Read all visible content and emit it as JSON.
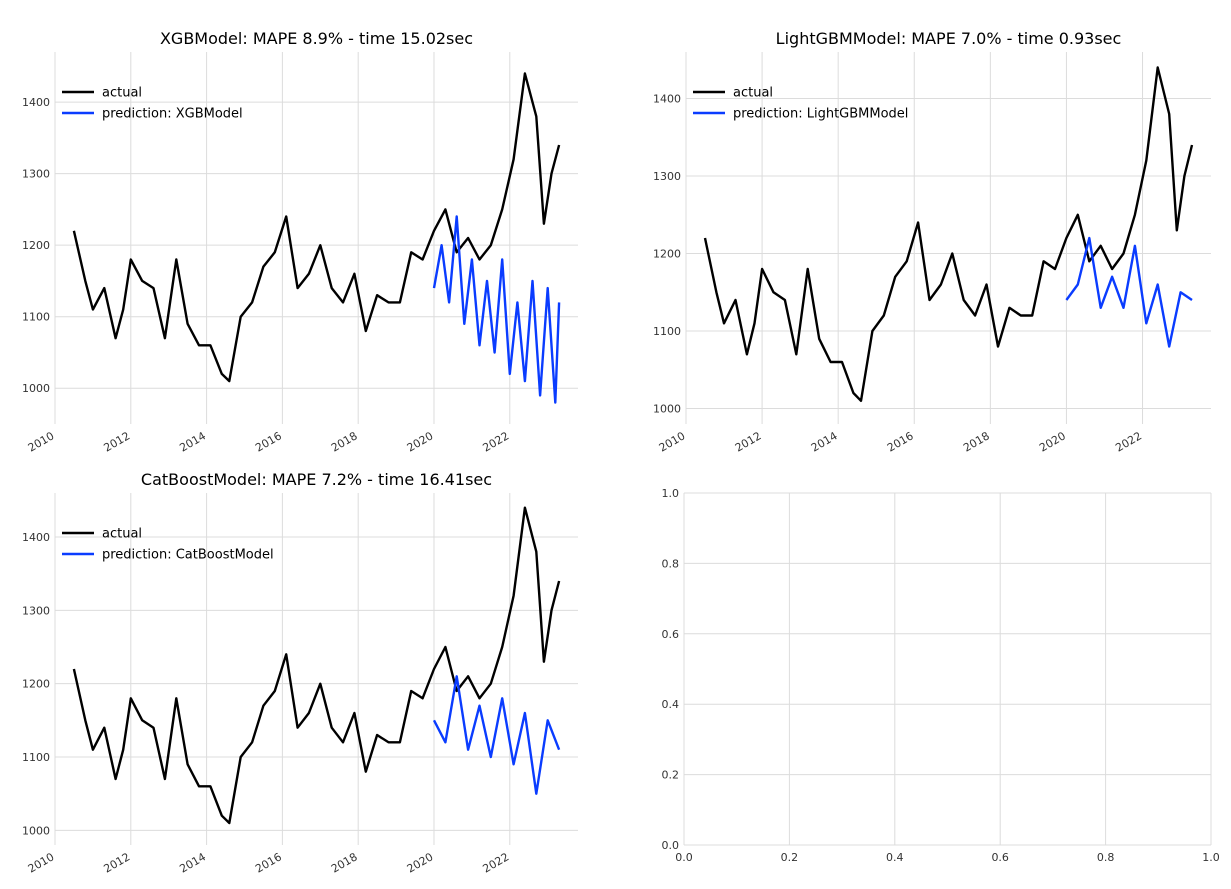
{
  "colors": {
    "actual": "#000000",
    "prediction": "#0a3cff",
    "grid": "#dcdcdc"
  },
  "chart_data": [
    {
      "type": "line",
      "title": "XGBModel: MAPE 8.9% - time 15.02sec",
      "x_ticks": [
        "2010",
        "2012",
        "2014",
        "2016",
        "2018",
        "2020",
        "2022"
      ],
      "y_ticks": [
        1000,
        1100,
        1200,
        1300,
        1400
      ],
      "xlim": [
        2010.0,
        2023.8
      ],
      "ylim": [
        950,
        1470
      ],
      "legend": "top-left",
      "grid": true,
      "series": [
        {
          "name": "actual",
          "x": [
            2010.5,
            2010.8,
            2011.0,
            2011.3,
            2011.6,
            2011.8,
            2012.0,
            2012.3,
            2012.6,
            2012.9,
            2013.2,
            2013.5,
            2013.8,
            2014.1,
            2014.4,
            2014.6,
            2014.9,
            2015.2,
            2015.5,
            2015.8,
            2016.1,
            2016.4,
            2016.7,
            2017.0,
            2017.3,
            2017.6,
            2017.9,
            2018.2,
            2018.5,
            2018.8,
            2019.1,
            2019.4,
            2019.7,
            2020.0,
            2020.3,
            2020.6,
            2020.9,
            2021.2,
            2021.5,
            2021.8,
            2022.1,
            2022.4,
            2022.7,
            2022.9,
            2023.1,
            2023.3
          ],
          "y": [
            1220,
            1150,
            1110,
            1140,
            1070,
            1110,
            1180,
            1150,
            1140,
            1070,
            1180,
            1090,
            1060,
            1060,
            1020,
            1010,
            1100,
            1120,
            1170,
            1190,
            1240,
            1140,
            1160,
            1200,
            1140,
            1120,
            1160,
            1080,
            1130,
            1120,
            1120,
            1190,
            1180,
            1220,
            1250,
            1190,
            1210,
            1180,
            1200,
            1250,
            1320,
            1440,
            1380,
            1230,
            1300,
            1340
          ]
        },
        {
          "name": "prediction: XGBModel",
          "x": [
            2020.0,
            2020.2,
            2020.4,
            2020.6,
            2020.8,
            2021.0,
            2021.2,
            2021.4,
            2021.6,
            2021.8,
            2022.0,
            2022.2,
            2022.4,
            2022.6,
            2022.8,
            2023.0,
            2023.2,
            2023.3
          ],
          "y": [
            1140,
            1200,
            1120,
            1240,
            1090,
            1180,
            1060,
            1150,
            1050,
            1180,
            1020,
            1120,
            1010,
            1150,
            990,
            1140,
            980,
            1120
          ]
        }
      ]
    },
    {
      "type": "line",
      "title": "LightGBMModel: MAPE 7.0% - time 0.93sec",
      "x_ticks": [
        "2010",
        "2012",
        "2014",
        "2016",
        "2018",
        "2020",
        "2022"
      ],
      "y_ticks": [
        1000,
        1100,
        1200,
        1300,
        1400
      ],
      "xlim": [
        2010.0,
        2023.8
      ],
      "ylim": [
        980,
        1460
      ],
      "legend": "top-left",
      "grid": true,
      "series": [
        {
          "name": "actual",
          "x": [
            2010.5,
            2010.8,
            2011.0,
            2011.3,
            2011.6,
            2011.8,
            2012.0,
            2012.3,
            2012.6,
            2012.9,
            2013.2,
            2013.5,
            2013.8,
            2014.1,
            2014.4,
            2014.6,
            2014.9,
            2015.2,
            2015.5,
            2015.8,
            2016.1,
            2016.4,
            2016.7,
            2017.0,
            2017.3,
            2017.6,
            2017.9,
            2018.2,
            2018.5,
            2018.8,
            2019.1,
            2019.4,
            2019.7,
            2020.0,
            2020.3,
            2020.6,
            2020.9,
            2021.2,
            2021.5,
            2021.8,
            2022.1,
            2022.4,
            2022.7,
            2022.9,
            2023.1,
            2023.3
          ],
          "y": [
            1220,
            1150,
            1110,
            1140,
            1070,
            1110,
            1180,
            1150,
            1140,
            1070,
            1180,
            1090,
            1060,
            1060,
            1020,
            1010,
            1100,
            1120,
            1170,
            1190,
            1240,
            1140,
            1160,
            1200,
            1140,
            1120,
            1160,
            1080,
            1130,
            1120,
            1120,
            1190,
            1180,
            1220,
            1250,
            1190,
            1210,
            1180,
            1200,
            1250,
            1320,
            1440,
            1380,
            1230,
            1300,
            1340
          ]
        },
        {
          "name": "prediction: LightGBMModel",
          "x": [
            2020.0,
            2020.3,
            2020.6,
            2020.9,
            2021.2,
            2021.5,
            2021.8,
            2022.1,
            2022.4,
            2022.7,
            2023.0,
            2023.3
          ],
          "y": [
            1140,
            1160,
            1220,
            1130,
            1170,
            1130,
            1210,
            1110,
            1160,
            1080,
            1150,
            1140
          ]
        }
      ]
    },
    {
      "type": "line",
      "title": "CatBoostModel: MAPE 7.2% - time 16.41sec",
      "x_ticks": [
        "2010",
        "2012",
        "2014",
        "2016",
        "2018",
        "2020",
        "2022"
      ],
      "y_ticks": [
        1000,
        1100,
        1200,
        1300,
        1400
      ],
      "xlim": [
        2010.0,
        2023.8
      ],
      "ylim": [
        980,
        1460
      ],
      "legend": "top-left",
      "grid": true,
      "series": [
        {
          "name": "actual",
          "x": [
            2010.5,
            2010.8,
            2011.0,
            2011.3,
            2011.6,
            2011.8,
            2012.0,
            2012.3,
            2012.6,
            2012.9,
            2013.2,
            2013.5,
            2013.8,
            2014.1,
            2014.4,
            2014.6,
            2014.9,
            2015.2,
            2015.5,
            2015.8,
            2016.1,
            2016.4,
            2016.7,
            2017.0,
            2017.3,
            2017.6,
            2017.9,
            2018.2,
            2018.5,
            2018.8,
            2019.1,
            2019.4,
            2019.7,
            2020.0,
            2020.3,
            2020.6,
            2020.9,
            2021.2,
            2021.5,
            2021.8,
            2022.1,
            2022.4,
            2022.7,
            2022.9,
            2023.1,
            2023.3
          ],
          "y": [
            1220,
            1150,
            1110,
            1140,
            1070,
            1110,
            1180,
            1150,
            1140,
            1070,
            1180,
            1090,
            1060,
            1060,
            1020,
            1010,
            1100,
            1120,
            1170,
            1190,
            1240,
            1140,
            1160,
            1200,
            1140,
            1120,
            1160,
            1080,
            1130,
            1120,
            1120,
            1190,
            1180,
            1220,
            1250,
            1190,
            1210,
            1180,
            1200,
            1250,
            1320,
            1440,
            1380,
            1230,
            1300,
            1340
          ]
        },
        {
          "name": "prediction: CatBoostModel",
          "x": [
            2020.0,
            2020.3,
            2020.6,
            2020.9,
            2021.2,
            2021.5,
            2021.8,
            2022.1,
            2022.4,
            2022.7,
            2023.0,
            2023.3
          ],
          "y": [
            1150,
            1120,
            1210,
            1110,
            1170,
            1100,
            1180,
            1090,
            1160,
            1050,
            1150,
            1110
          ]
        }
      ]
    },
    {
      "type": "line",
      "title": "",
      "x_ticks": [
        "0.0",
        "0.2",
        "0.4",
        "0.6",
        "0.8",
        "1.0"
      ],
      "y_ticks": [
        "0.0",
        "0.2",
        "0.4",
        "0.6",
        "0.8",
        "1.0"
      ],
      "xlim": [
        0.0,
        1.0
      ],
      "ylim": [
        0.0,
        1.0
      ],
      "grid": true,
      "series": []
    }
  ]
}
